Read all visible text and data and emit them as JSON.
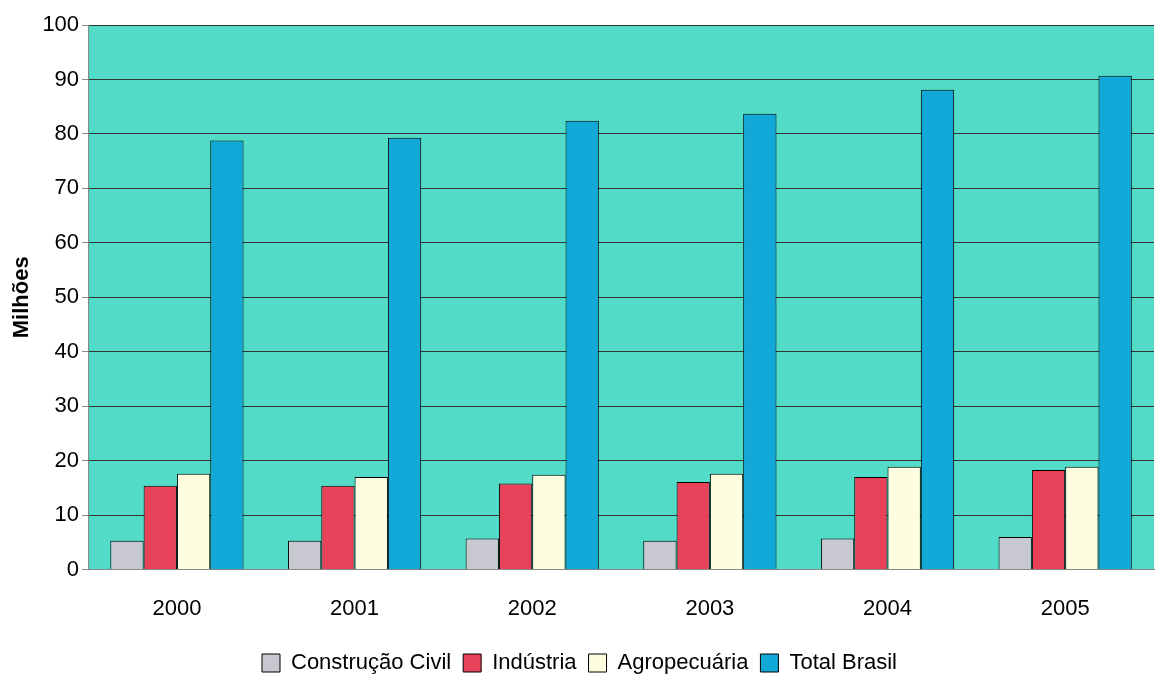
{
  "chart_data": {
    "type": "bar",
    "ylabel": "Milhões",
    "categories": [
      "2000",
      "2001",
      "2002",
      "2003",
      "2004",
      "2005"
    ],
    "series": [
      {
        "name": "Construção Civil",
        "color": "#c8c8d0",
        "values": [
          5.3,
          5.3,
          5.7,
          5.3,
          5.7,
          6.0
        ]
      },
      {
        "name": "Indústria",
        "color": "#e8415a",
        "values": [
          15.4,
          15.4,
          15.8,
          16.1,
          17.0,
          18.3
        ]
      },
      {
        "name": "Agropecuária",
        "color": "#fffde0",
        "values": [
          17.6,
          17.0,
          17.4,
          17.6,
          18.9,
          18.9
        ]
      },
      {
        "name": "Total Brasil",
        "color": "#12a8d8",
        "values": [
          78.8,
          79.3,
          82.4,
          83.7,
          88.1,
          90.7
        ]
      }
    ],
    "ylim": [
      0,
      100
    ],
    "yticks": [
      0,
      10,
      20,
      30,
      40,
      50,
      60,
      70,
      80,
      90,
      100
    ],
    "grid": "y",
    "legend": "bottom"
  }
}
